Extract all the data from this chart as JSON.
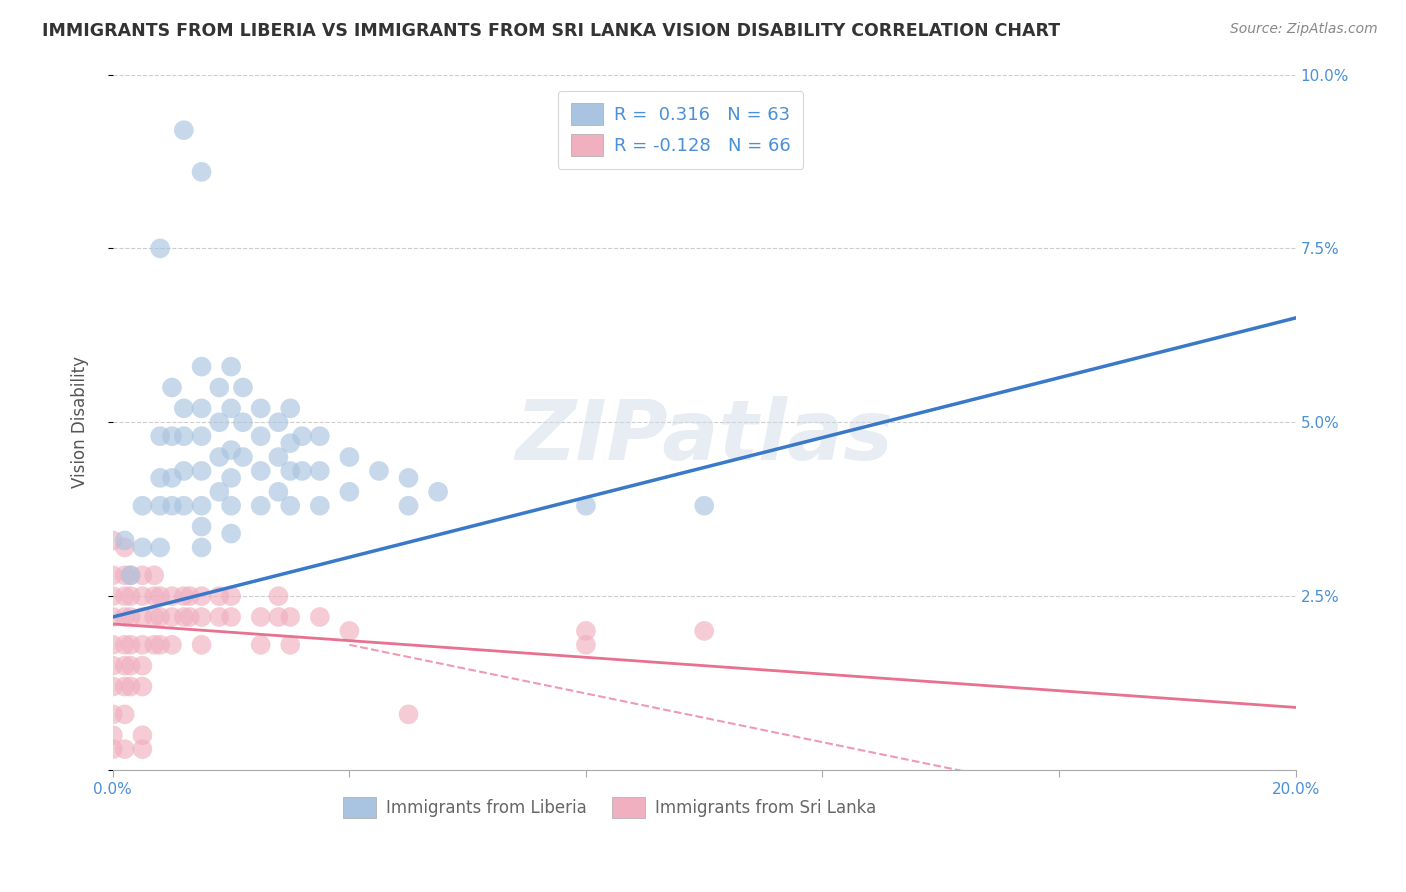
{
  "title": "IMMIGRANTS FROM LIBERIA VS IMMIGRANTS FROM SRI LANKA VISION DISABILITY CORRELATION CHART",
  "source": "Source: ZipAtlas.com",
  "ylabel": "Vision Disability",
  "xlim": [
    0.0,
    0.2
  ],
  "ylim": [
    0.0,
    0.1
  ],
  "yticks": [
    0.0,
    0.025,
    0.05,
    0.075,
    0.1
  ],
  "ytick_labels_right": [
    "",
    "2.5%",
    "5.0%",
    "7.5%",
    "10.0%"
  ],
  "xtick_positions": [
    0.0,
    0.04,
    0.08,
    0.12,
    0.16,
    0.2
  ],
  "liberia_color": "#a8c4e0",
  "sri_lanka_color": "#f0b0c0",
  "liberia_line_color": "#3a78c9",
  "sri_lanka_line_color": "#e87090",
  "background_color": "#ffffff",
  "grid_color": "#c8c8c8",
  "legend_R_liberia": "0.316",
  "legend_N_liberia": "63",
  "legend_R_sri_lanka": "-0.128",
  "legend_N_sri_lanka": "66",
  "watermark": "ZIPatlas",
  "tick_color": "#4a90d9",
  "liberia_scatter": [
    [
      0.002,
      0.033
    ],
    [
      0.003,
      0.028
    ],
    [
      0.005,
      0.038
    ],
    [
      0.005,
      0.032
    ],
    [
      0.008,
      0.048
    ],
    [
      0.008,
      0.042
    ],
    [
      0.008,
      0.038
    ],
    [
      0.008,
      0.032
    ],
    [
      0.01,
      0.055
    ],
    [
      0.01,
      0.048
    ],
    [
      0.01,
      0.042
    ],
    [
      0.01,
      0.038
    ],
    [
      0.012,
      0.052
    ],
    [
      0.012,
      0.048
    ],
    [
      0.012,
      0.043
    ],
    [
      0.012,
      0.038
    ],
    [
      0.015,
      0.058
    ],
    [
      0.015,
      0.052
    ],
    [
      0.015,
      0.048
    ],
    [
      0.015,
      0.043
    ],
    [
      0.015,
      0.038
    ],
    [
      0.015,
      0.035
    ],
    [
      0.015,
      0.032
    ],
    [
      0.018,
      0.055
    ],
    [
      0.018,
      0.05
    ],
    [
      0.018,
      0.045
    ],
    [
      0.018,
      0.04
    ],
    [
      0.02,
      0.058
    ],
    [
      0.02,
      0.052
    ],
    [
      0.02,
      0.046
    ],
    [
      0.02,
      0.042
    ],
    [
      0.02,
      0.038
    ],
    [
      0.02,
      0.034
    ],
    [
      0.022,
      0.055
    ],
    [
      0.022,
      0.05
    ],
    [
      0.022,
      0.045
    ],
    [
      0.025,
      0.052
    ],
    [
      0.025,
      0.048
    ],
    [
      0.025,
      0.043
    ],
    [
      0.025,
      0.038
    ],
    [
      0.028,
      0.05
    ],
    [
      0.028,
      0.045
    ],
    [
      0.028,
      0.04
    ],
    [
      0.03,
      0.052
    ],
    [
      0.03,
      0.047
    ],
    [
      0.03,
      0.043
    ],
    [
      0.03,
      0.038
    ],
    [
      0.032,
      0.048
    ],
    [
      0.032,
      0.043
    ],
    [
      0.035,
      0.048
    ],
    [
      0.035,
      0.043
    ],
    [
      0.035,
      0.038
    ],
    [
      0.04,
      0.045
    ],
    [
      0.04,
      0.04
    ],
    [
      0.045,
      0.043
    ],
    [
      0.05,
      0.042
    ],
    [
      0.05,
      0.038
    ],
    [
      0.055,
      0.04
    ],
    [
      0.08,
      0.038
    ],
    [
      0.1,
      0.038
    ],
    [
      0.012,
      0.092
    ],
    [
      0.015,
      0.086
    ],
    [
      0.008,
      0.075
    ]
  ],
  "sri_lanka_scatter": [
    [
      0.0,
      0.033
    ],
    [
      0.0,
      0.028
    ],
    [
      0.0,
      0.025
    ],
    [
      0.0,
      0.022
    ],
    [
      0.0,
      0.018
    ],
    [
      0.0,
      0.015
    ],
    [
      0.0,
      0.012
    ],
    [
      0.0,
      0.008
    ],
    [
      0.0,
      0.005
    ],
    [
      0.002,
      0.032
    ],
    [
      0.002,
      0.028
    ],
    [
      0.002,
      0.025
    ],
    [
      0.002,
      0.022
    ],
    [
      0.002,
      0.018
    ],
    [
      0.002,
      0.015
    ],
    [
      0.002,
      0.012
    ],
    [
      0.002,
      0.008
    ],
    [
      0.003,
      0.028
    ],
    [
      0.003,
      0.025
    ],
    [
      0.003,
      0.022
    ],
    [
      0.003,
      0.018
    ],
    [
      0.003,
      0.015
    ],
    [
      0.003,
      0.012
    ],
    [
      0.005,
      0.028
    ],
    [
      0.005,
      0.025
    ],
    [
      0.005,
      0.022
    ],
    [
      0.005,
      0.018
    ],
    [
      0.005,
      0.015
    ],
    [
      0.005,
      0.012
    ],
    [
      0.007,
      0.028
    ],
    [
      0.007,
      0.025
    ],
    [
      0.007,
      0.022
    ],
    [
      0.007,
      0.018
    ],
    [
      0.008,
      0.025
    ],
    [
      0.008,
      0.022
    ],
    [
      0.008,
      0.018
    ],
    [
      0.01,
      0.025
    ],
    [
      0.01,
      0.022
    ],
    [
      0.01,
      0.018
    ],
    [
      0.012,
      0.025
    ],
    [
      0.012,
      0.022
    ],
    [
      0.013,
      0.025
    ],
    [
      0.013,
      0.022
    ],
    [
      0.015,
      0.025
    ],
    [
      0.015,
      0.022
    ],
    [
      0.015,
      0.018
    ],
    [
      0.018,
      0.025
    ],
    [
      0.018,
      0.022
    ],
    [
      0.02,
      0.025
    ],
    [
      0.02,
      0.022
    ],
    [
      0.025,
      0.022
    ],
    [
      0.025,
      0.018
    ],
    [
      0.028,
      0.025
    ],
    [
      0.028,
      0.022
    ],
    [
      0.03,
      0.022
    ],
    [
      0.03,
      0.018
    ],
    [
      0.035,
      0.022
    ],
    [
      0.04,
      0.02
    ],
    [
      0.05,
      0.008
    ],
    [
      0.08,
      0.02
    ],
    [
      0.08,
      0.018
    ],
    [
      0.1,
      0.02
    ],
    [
      0.0,
      0.003
    ],
    [
      0.002,
      0.003
    ],
    [
      0.005,
      0.005
    ],
    [
      0.005,
      0.003
    ]
  ],
  "liberia_line_endpoints": [
    [
      0.0,
      0.022
    ],
    [
      0.2,
      0.065
    ]
  ],
  "sri_lanka_line_endpoints": [
    [
      0.0,
      0.021
    ],
    [
      0.2,
      0.009
    ]
  ],
  "sri_lanka_dashed_endpoints": [
    [
      0.04,
      0.018
    ],
    [
      0.2,
      -0.01
    ]
  ]
}
